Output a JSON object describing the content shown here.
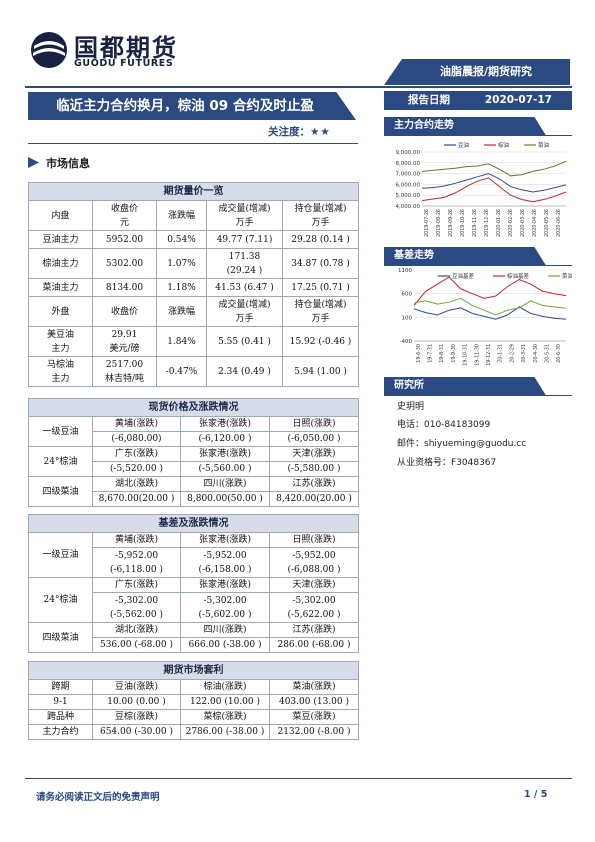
{
  "header": {
    "logo_cn": "国都期货",
    "logo_en": "GUODU FUTURES",
    "category": "油脂晨报/期货研究"
  },
  "report": {
    "title": "临近主力合约换月，棕油 09 合约及时止盈",
    "focus_label": "关注度：",
    "focus_stars": "★★",
    "date_label": "报告日期",
    "date_value": "2020-07-17"
  },
  "section_market": "市场信息",
  "futures_table": {
    "banner": "期货量价一览",
    "header_domestic": [
      "内盘",
      "收盘价元",
      "涨跌幅",
      "成交量(增减)万手",
      "持仓量(增减)万手"
    ],
    "header_domestic_split": {
      "c0": "内盘",
      "c1a": "收盘价",
      "c1b": "元",
      "c2": "涨跌幅",
      "c3a": "成交量(增减)",
      "c3b": "万手",
      "c4a": "持仓量(增减)",
      "c4b": "万手"
    },
    "rows_domestic": [
      {
        "name": "豆油主力",
        "close": "5952.00",
        "chg": "0.54%",
        "vol": "49.77 (7.11)",
        "oi": "29.28 (0.14 )"
      },
      {
        "name": "棕油主力",
        "close": "5302.00",
        "chg": "1.07%",
        "vol_a": "171.38",
        "vol_b": "(29.24 )",
        "oi": "34.87 (0.78 )"
      },
      {
        "name": "菜油主力",
        "close": "8134.00",
        "chg": "1.18%",
        "vol": "41.53 (6.47 )",
        "oi": "17.25 (0.71 )"
      }
    ],
    "header_foreign": {
      "c0": "外盘",
      "c1": "收盘价",
      "c2": "涨跌幅",
      "c3a": "成交量(增减)",
      "c3b": "万手",
      "c4a": "持仓量(增减)",
      "c4b": "万手"
    },
    "rows_foreign": [
      {
        "name_a": "美豆油",
        "name_b": "主力",
        "close_a": "29.91",
        "close_b": "美元/磅",
        "chg": "1.84%",
        "vol": "5.55 (0.41 )",
        "oi": "15.92 (-0.46 )"
      },
      {
        "name_a": "马棕油",
        "name_b": "主力",
        "close_a": "2517.00",
        "close_b": "林吉特/吨",
        "chg": "-0.47%",
        "vol": "2.34 (0.49 )",
        "oi": "5.94 (1.00 )"
      }
    ]
  },
  "spot_table": {
    "banner": "现货价格及涨跌情况",
    "groups": [
      {
        "name": "一级豆油",
        "regions": [
          "黄埔(涨跌)",
          "张家港(涨跌)",
          "日照(涨跌)"
        ],
        "values": [
          "(-6,080.00)",
          "(-6,120.00 )",
          "(-6,050.00 )"
        ]
      },
      {
        "name": "24°棕油",
        "regions": [
          "广东(涨跌)",
          "张家港(涨跌)",
          "天津(涨跌)"
        ],
        "values": [
          "(-5,520.00 )",
          "(-5,560.00 )",
          "(-5,580.00 )"
        ]
      },
      {
        "name": "四级菜油",
        "regions": [
          "湖北(涨跌)",
          "四川(涨跌)",
          "江苏(涨跌)"
        ],
        "values": [
          "8,670.00(20.00 )",
          "8,800.00(50.00 )",
          "8,420.00(20.00 )"
        ]
      }
    ]
  },
  "basis_table": {
    "banner": "基差及涨跌情况",
    "groups": [
      {
        "name": "一级豆油",
        "regions": [
          "黄埔(涨跌)",
          "张家港(涨跌)",
          "日照(涨跌)"
        ],
        "values_a": [
          "-5,952.00",
          "-5,952.00",
          "-5,952.00"
        ],
        "values_b": [
          "(-6,118.00 )",
          "(-6,158.00 )",
          "(-6,088.00 )"
        ]
      },
      {
        "name": "24°棕油",
        "regions": [
          "广东(涨跌)",
          "张家港(涨跌)",
          "天津(涨跌)"
        ],
        "values_a": [
          "-5,302.00",
          "-5,302.00",
          "-5,302.00"
        ],
        "values_b": [
          "(-5,562.00 )",
          "(-5,602.00 )",
          "(-5,622.00 )"
        ]
      },
      {
        "name": "四级菜油",
        "regions": [
          "湖北(涨跌)",
          "四川(涨跌)",
          "江苏(涨跌)"
        ],
        "values": [
          "536.00 (-68.00 )",
          "666.00 (-38.00 )",
          "286.00 (-68.00 )"
        ]
      }
    ]
  },
  "arb_table": {
    "banner": "期货市场套利",
    "header": [
      "跨期",
      "豆油(涨跌)",
      "棕油(涨跌)",
      "菜油(涨跌)"
    ],
    "row1": [
      "9-1",
      "10.00 (0.00 )",
      "122.00    (10.00 )",
      "403.00    (13.00 )"
    ],
    "header2": [
      "跨品种",
      "豆棕(涨跌)",
      "菜棕(涨跌)",
      "菜豆(涨跌)"
    ],
    "row2": [
      "主力合约",
      "654.00 (-30.00 )",
      "2786.00 (-38.00 )",
      "2132.00 (-8.00 )"
    ]
  },
  "sidebar": {
    "trend_title": "主力合约走势",
    "basis_title": "基差走势",
    "analyst_title": "研究所",
    "analyst_name": "史玥明",
    "phone": "电话：010-84183099",
    "email": "邮件：shiyueming@guodu.cc",
    "license": "从业资格号：F3048367"
  },
  "chart_trend": {
    "type": "line",
    "title": "",
    "legend": [
      "豆油",
      "棕油",
      "菜油"
    ],
    "colors": [
      "#2c4a9a",
      "#c0282d",
      "#6b7a34"
    ],
    "ylim": [
      4000,
      9000
    ],
    "yticks": [
      "9,000.00",
      "8,000.00",
      "7,000.00",
      "6,000.00",
      "5,000.00",
      "4,000.00"
    ],
    "xticks": [
      "2019-07-26",
      "2019-08-26",
      "2019-09-26",
      "2019-10-26",
      "2019-11-26",
      "2019-12-26",
      "2020-01-26",
      "2020-02-26",
      "2020-03-26",
      "2020-04-26",
      "2020-05-26",
      "2020-06-26"
    ],
    "series": [
      {
        "name": "豆油",
        "values": [
          5650,
          5700,
          5850,
          6100,
          6400,
          6700,
          7000,
          6500,
          5800,
          5500,
          5300,
          5450,
          5700,
          5950
        ]
      },
      {
        "name": "棕油",
        "values": [
          4500,
          4650,
          4800,
          5200,
          5800,
          6300,
          6600,
          5800,
          5000,
          4600,
          4400,
          4600,
          4900,
          5300
        ]
      },
      {
        "name": "菜油",
        "values": [
          7200,
          7300,
          7400,
          7500,
          7650,
          7700,
          7900,
          7400,
          6800,
          6900,
          7200,
          7400,
          7700,
          8150
        ]
      }
    ]
  },
  "chart_basis": {
    "type": "line",
    "title": "",
    "legend": [
      "豆油基差",
      "棕油基差",
      "菜油基差"
    ],
    "colors": [
      "#2c4a9a",
      "#c0282d",
      "#7aa03a"
    ],
    "ylim": [
      -400,
      1100
    ],
    "yticks": [
      "1100",
      "600",
      "100",
      "-400"
    ],
    "xticks": [
      "19-6-30",
      "19-7-31",
      "19-8-31",
      "19-9-30",
      "19-10-31",
      "19-11-30",
      "19-12-31",
      "20-1-31",
      "20-2-29",
      "20-3-31",
      "20-4-30",
      "20-5-31",
      "20-6-30"
    ],
    "series": [
      {
        "name": "豆油基差",
        "values": [
          280,
          200,
          150,
          250,
          300,
          180,
          120,
          60,
          150,
          320,
          180,
          120,
          80,
          60
        ]
      },
      {
        "name": "棕油基差",
        "values": [
          350,
          650,
          800,
          950,
          700,
          600,
          500,
          550,
          750,
          900,
          800,
          650,
          600,
          560
        ]
      },
      {
        "name": "菜油基差",
        "values": [
          400,
          450,
          380,
          420,
          500,
          350,
          250,
          150,
          250,
          300,
          450,
          350,
          320,
          290
        ]
      }
    ]
  },
  "footer": {
    "disclaimer": "请务必阅读正文后的免责声明",
    "page": "1 / 5"
  }
}
